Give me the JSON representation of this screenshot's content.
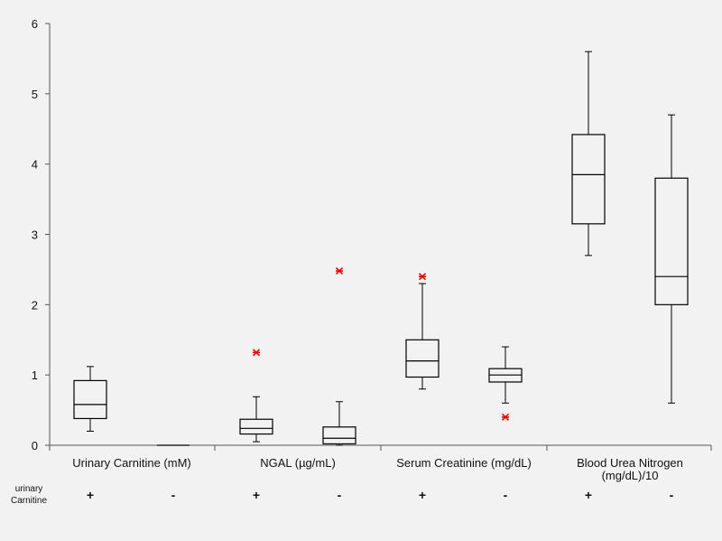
{
  "chart_data": {
    "type": "box",
    "title": "",
    "xlabel": "",
    "ylabel": "",
    "ylim": [
      0,
      6
    ],
    "yticks": [
      0,
      1,
      2,
      3,
      4,
      5,
      6
    ],
    "grid": false,
    "categories": [
      {
        "label_lines": [
          "Urinary Carnitine (mM)"
        ]
      },
      {
        "label_lines": [
          "NGAL (µg/mL)"
        ]
      },
      {
        "label_lines": [
          "Serum Creatinine (mg/dL)"
        ]
      },
      {
        "label_lines": [
          "Blood Urea Nitrogen",
          "(mg/dL)/10"
        ]
      }
    ],
    "group_row_label_lines": [
      "urinary",
      "Carnitine"
    ],
    "outlier_color": "#ff0000",
    "boxes": [
      {
        "category": 0,
        "group": "+",
        "min": 0.2,
        "q1": 0.38,
        "median": 0.58,
        "q3": 0.92,
        "max": 1.12,
        "outliers": []
      },
      {
        "category": 0,
        "group": "-",
        "min": 0.0,
        "q1": 0.0,
        "median": 0.0,
        "q3": 0.0,
        "max": 0.0,
        "outliers": []
      },
      {
        "category": 1,
        "group": "+",
        "min": 0.05,
        "q1": 0.16,
        "median": 0.24,
        "q3": 0.37,
        "max": 0.69,
        "outliers": [
          1.32
        ]
      },
      {
        "category": 1,
        "group": "-",
        "min": 0.0,
        "q1": 0.02,
        "median": 0.1,
        "q3": 0.26,
        "max": 0.62,
        "outliers": [
          2.48
        ]
      },
      {
        "category": 2,
        "group": "+",
        "min": 0.8,
        "q1": 0.97,
        "median": 1.2,
        "q3": 1.5,
        "max": 2.3,
        "outliers": [
          2.4
        ]
      },
      {
        "category": 2,
        "group": "-",
        "min": 0.6,
        "q1": 0.9,
        "median": 1.0,
        "q3": 1.09,
        "max": 1.4,
        "outliers": [
          0.4
        ]
      },
      {
        "category": 3,
        "group": "+",
        "min": 2.7,
        "q1": 3.15,
        "median": 3.85,
        "q3": 4.42,
        "max": 5.6,
        "outliers": []
      },
      {
        "category": 3,
        "group": "-",
        "min": 0.6,
        "q1": 2.0,
        "median": 2.4,
        "q3": 3.8,
        "max": 4.7,
        "outliers": []
      }
    ]
  }
}
